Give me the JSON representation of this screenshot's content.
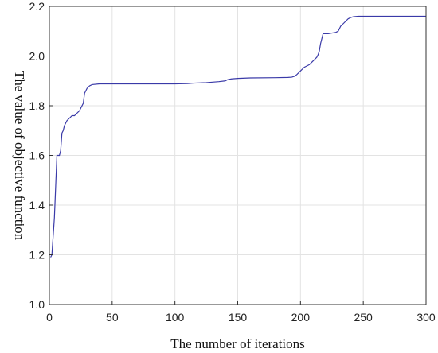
{
  "chart_data": {
    "type": "line",
    "title": "",
    "xlabel": "The number of iterations",
    "ylabel": "The value of objective function",
    "xlim": [
      0,
      300
    ],
    "ylim": [
      1.0,
      2.2
    ],
    "xticks": [
      0,
      50,
      100,
      150,
      200,
      250,
      300
    ],
    "yticks": [
      1.0,
      1.2,
      1.4,
      1.6,
      1.8,
      2.0,
      2.2
    ],
    "xtick_labels": [
      "0",
      "50",
      "100",
      "150",
      "200",
      "250",
      "300"
    ],
    "ytick_labels": [
      "1.0",
      "1.2",
      "1.4",
      "1.6",
      "1.8",
      "2.0",
      "2.2"
    ],
    "grid": true,
    "series_color": "#3a3aa8",
    "series": [
      {
        "x": [
          1,
          2,
          4,
          6,
          8,
          9,
          10,
          11,
          12,
          14,
          16,
          18,
          20,
          22,
          24,
          25,
          26,
          27,
          28,
          30,
          32,
          34,
          40,
          60,
          80,
          100,
          110,
          115,
          125,
          135,
          140,
          142,
          145,
          150,
          160,
          180,
          190,
          193,
          195,
          197,
          199,
          201,
          203,
          205,
          207,
          209,
          211,
          213,
          214,
          215,
          216,
          218,
          222,
          228,
          230,
          232,
          234,
          236,
          238,
          240,
          242,
          246,
          250,
          260,
          280,
          300
        ],
        "y": [
          1.19,
          1.2,
          1.35,
          1.6,
          1.6,
          1.62,
          1.69,
          1.7,
          1.72,
          1.74,
          1.75,
          1.76,
          1.76,
          1.77,
          1.78,
          1.79,
          1.8,
          1.81,
          1.85,
          1.87,
          1.88,
          1.885,
          1.888,
          1.888,
          1.888,
          1.888,
          1.889,
          1.891,
          1.893,
          1.897,
          1.9,
          1.905,
          1.908,
          1.91,
          1.912,
          1.913,
          1.914,
          1.915,
          1.918,
          1.925,
          1.935,
          1.945,
          1.955,
          1.96,
          1.965,
          1.975,
          1.985,
          1.995,
          2.005,
          2.02,
          2.05,
          2.09,
          2.09,
          2.095,
          2.1,
          2.12,
          2.13,
          2.14,
          2.15,
          2.155,
          2.158,
          2.16,
          2.16,
          2.16,
          2.16,
          2.16
        ]
      }
    ]
  }
}
